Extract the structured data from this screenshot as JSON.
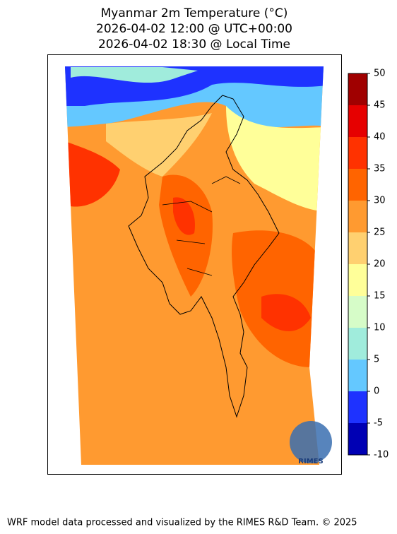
{
  "title": [
    "Myanmar 2m Temperature (°C)",
    "2026-04-02 12:00 @ UTC+00:00",
    "2026-04-02 18:30 @ Local Time"
  ],
  "colorbar": {
    "lim": [
      -10,
      50
    ],
    "ticks": [
      -10,
      -5,
      0,
      5,
      10,
      15,
      20,
      25,
      30,
      35,
      40,
      45,
      50
    ],
    "colors": [
      "#0000b4",
      "#1e32ff",
      "#64c8ff",
      "#a0ecdc",
      "#d6fcc8",
      "#ffff99",
      "#ffd070",
      "#ff9a30",
      "#ff6400",
      "#ff3200",
      "#e60000",
      "#a00000"
    ]
  },
  "logo": "RIMES",
  "footer": "WRF model data processed and visualized by the RIMES R&D Team. © 2025"
}
